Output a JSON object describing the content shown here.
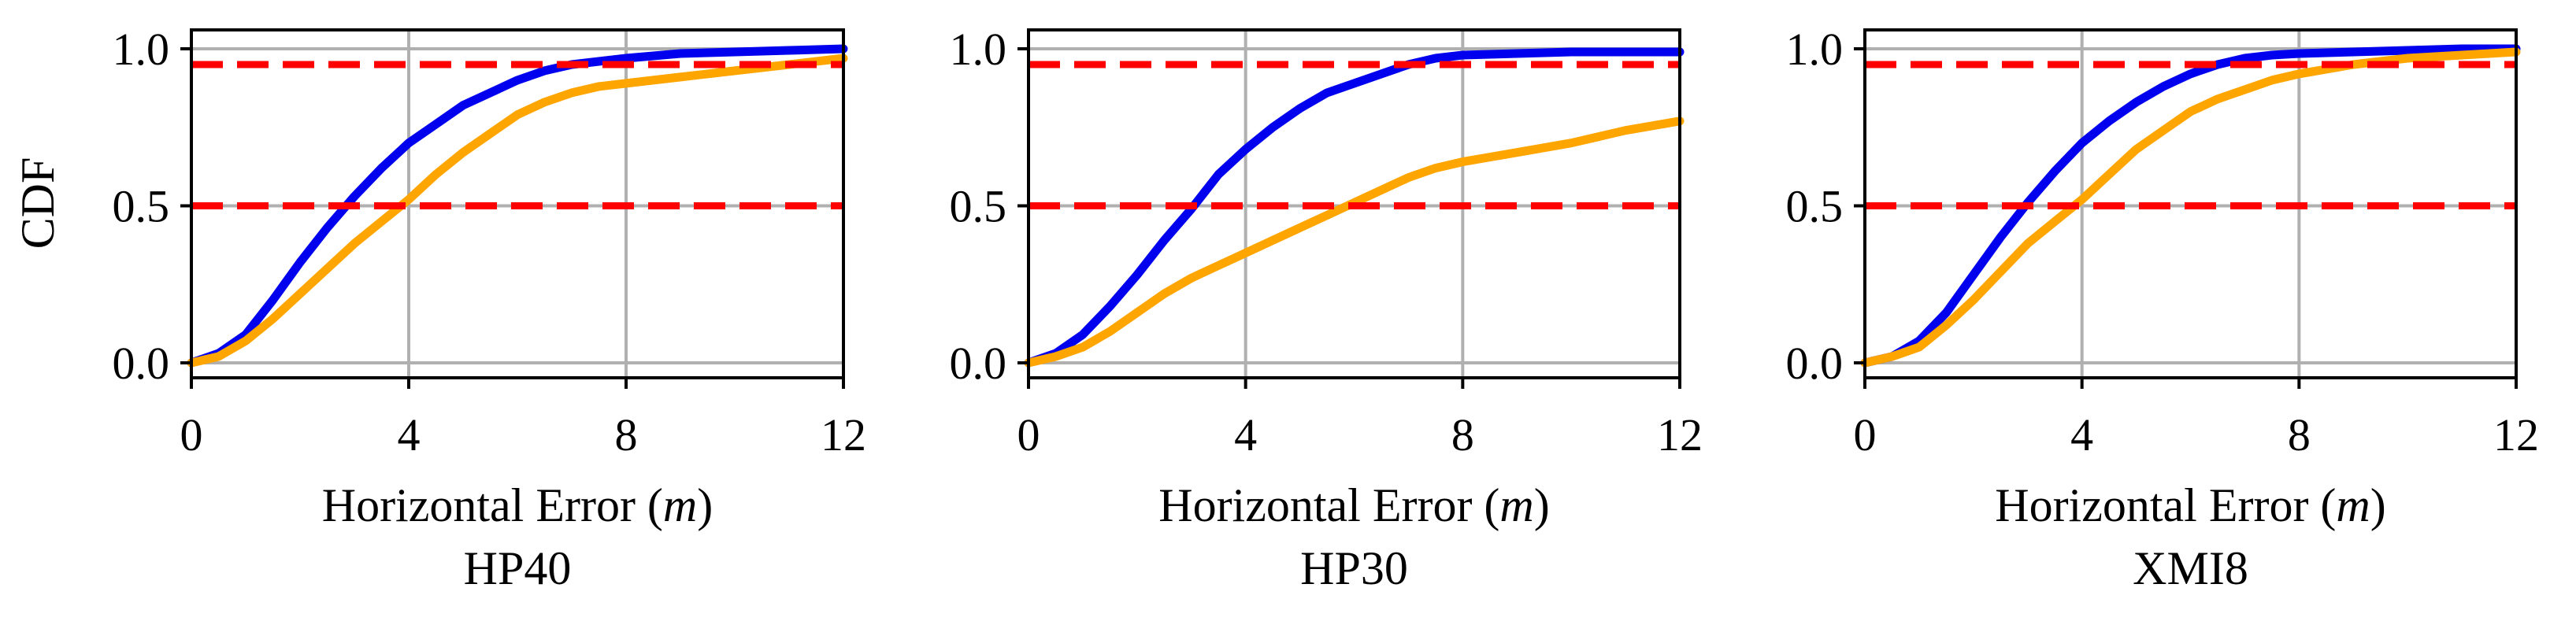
{
  "ylabel": "CDF",
  "colors": {
    "blue_series": "#0000ee",
    "orange_series": "#ffa500",
    "reference_lines": "#ff0000",
    "grid": "#b0b0b0",
    "axes": "#000000"
  },
  "chart_data": [
    {
      "type": "line",
      "title": "HP40",
      "xlabel": "Horizontal Error",
      "xlabel_unit": "m",
      "ylabel": "CDF",
      "xlim": [
        0,
        12
      ],
      "ylim": [
        0,
        1
      ],
      "xticks": [
        "0",
        "4",
        "8",
        "12"
      ],
      "yticks": [
        "0.0",
        "0.5",
        "1.0"
      ],
      "grid": true,
      "reference_lines": [
        0.5,
        0.95
      ],
      "series": [
        {
          "color": "#0000ee",
          "x": [
            0,
            0.5,
            1,
            1.5,
            2,
            2.5,
            3,
            3.5,
            4,
            4.5,
            5,
            5.5,
            6,
            6.5,
            7,
            7.5,
            8,
            9,
            10,
            11,
            12
          ],
          "y": [
            0,
            0.03,
            0.09,
            0.2,
            0.32,
            0.43,
            0.53,
            0.62,
            0.7,
            0.76,
            0.82,
            0.86,
            0.9,
            0.93,
            0.95,
            0.96,
            0.97,
            0.985,
            0.99,
            0.995,
            1.0
          ]
        },
        {
          "color": "#ffa500",
          "x": [
            0,
            0.5,
            1,
            1.5,
            2,
            2.5,
            3,
            3.5,
            4,
            4.5,
            5,
            5.5,
            6,
            6.5,
            7,
            7.5,
            8,
            9,
            10,
            11,
            12
          ],
          "y": [
            0,
            0.02,
            0.07,
            0.14,
            0.22,
            0.3,
            0.38,
            0.45,
            0.52,
            0.6,
            0.67,
            0.73,
            0.79,
            0.83,
            0.86,
            0.88,
            0.89,
            0.91,
            0.93,
            0.95,
            0.97
          ]
        }
      ]
    },
    {
      "type": "line",
      "title": "HP30",
      "xlabel": "Horizontal Error",
      "xlabel_unit": "m",
      "ylabel": "",
      "xlim": [
        0,
        12
      ],
      "ylim": [
        0,
        1
      ],
      "xticks": [
        "0",
        "4",
        "8",
        "12"
      ],
      "yticks": [
        "0.0",
        "0.5",
        "1.0"
      ],
      "grid": true,
      "reference_lines": [
        0.5,
        0.95
      ],
      "series": [
        {
          "color": "#0000ee",
          "x": [
            0,
            0.5,
            1,
            1.5,
            2,
            2.5,
            3,
            3.5,
            4,
            4.5,
            5,
            5.5,
            6,
            6.5,
            7,
            7.5,
            8,
            9,
            10,
            11,
            12
          ],
          "y": [
            0,
            0.03,
            0.09,
            0.18,
            0.28,
            0.39,
            0.49,
            0.6,
            0.68,
            0.75,
            0.81,
            0.86,
            0.89,
            0.92,
            0.95,
            0.97,
            0.98,
            0.985,
            0.99,
            0.99,
            0.99
          ]
        },
        {
          "color": "#ffa500",
          "x": [
            0,
            0.5,
            1,
            1.5,
            2,
            2.5,
            3,
            3.5,
            4,
            4.5,
            5,
            5.5,
            6,
            6.5,
            7,
            7.5,
            8,
            9,
            10,
            11,
            12
          ],
          "y": [
            0,
            0.02,
            0.05,
            0.1,
            0.16,
            0.22,
            0.27,
            0.31,
            0.35,
            0.39,
            0.43,
            0.47,
            0.51,
            0.55,
            0.59,
            0.62,
            0.64,
            0.67,
            0.7,
            0.74,
            0.77
          ]
        }
      ]
    },
    {
      "type": "line",
      "title": "XMI8",
      "xlabel": "Horizontal Error",
      "xlabel_unit": "m",
      "ylabel": "",
      "xlim": [
        0,
        12
      ],
      "ylim": [
        0,
        1
      ],
      "xticks": [
        "0",
        "4",
        "8",
        "12"
      ],
      "yticks": [
        "0.0",
        "0.5",
        "1.0"
      ],
      "grid": true,
      "reference_lines": [
        0.5,
        0.95
      ],
      "series": [
        {
          "color": "#0000ee",
          "x": [
            0,
            0.5,
            1,
            1.5,
            2,
            2.5,
            3,
            3.5,
            4,
            4.5,
            5,
            5.5,
            6,
            6.5,
            7,
            7.5,
            8,
            9,
            10,
            11,
            12
          ],
          "y": [
            0,
            0.02,
            0.07,
            0.16,
            0.28,
            0.4,
            0.51,
            0.61,
            0.7,
            0.77,
            0.83,
            0.88,
            0.92,
            0.95,
            0.97,
            0.98,
            0.985,
            0.99,
            0.995,
            1.0,
            1.0
          ]
        },
        {
          "color": "#ffa500",
          "x": [
            0,
            0.5,
            1,
            1.5,
            2,
            2.5,
            3,
            3.5,
            4,
            4.5,
            5,
            5.5,
            6,
            6.5,
            7,
            7.5,
            8,
            9,
            10,
            11,
            12
          ],
          "y": [
            0,
            0.02,
            0.05,
            0.12,
            0.2,
            0.29,
            0.38,
            0.45,
            0.52,
            0.6,
            0.68,
            0.74,
            0.8,
            0.84,
            0.87,
            0.9,
            0.92,
            0.95,
            0.97,
            0.98,
            0.99
          ]
        }
      ]
    }
  ]
}
